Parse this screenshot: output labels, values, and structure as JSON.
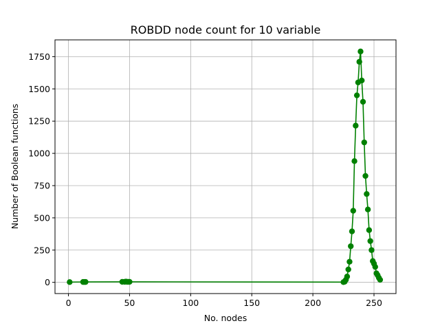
{
  "chart_data": {
    "type": "line",
    "title": "ROBDD node count for 10 variable",
    "xlabel": "No. nodes",
    "ylabel": "Number of Boolean functions",
    "xlim": [
      -11,
      268
    ],
    "ylim": [
      -87,
      1880
    ],
    "xticks": [
      0,
      50,
      100,
      150,
      200,
      250
    ],
    "yticks": [
      0,
      250,
      500,
      750,
      1000,
      1250,
      1500,
      1750
    ],
    "ytick_labels": [
      "0",
      "250",
      "500",
      "750",
      "1000",
      "1250",
      "1500",
      "1750"
    ],
    "grid": true,
    "series_color": "#008000",
    "marker": "circle",
    "x": [
      1,
      12,
      13,
      14,
      44,
      46,
      47,
      48,
      49,
      50,
      225,
      226,
      227,
      228,
      229,
      230,
      231,
      232,
      233,
      234,
      235,
      236,
      237,
      238,
      239,
      240,
      241,
      242,
      243,
      244,
      245,
      246,
      247,
      248,
      249,
      250,
      251,
      252,
      253,
      254,
      255
    ],
    "y": [
      2,
      3,
      3,
      3,
      4,
      4,
      6,
      4,
      4,
      4,
      2,
      5,
      20,
      45,
      100,
      160,
      280,
      395,
      555,
      940,
      1215,
      1450,
      1550,
      1710,
      1790,
      1565,
      1400,
      1085,
      825,
      685,
      565,
      405,
      320,
      250,
      165,
      145,
      120,
      70,
      55,
      35,
      20
    ]
  }
}
